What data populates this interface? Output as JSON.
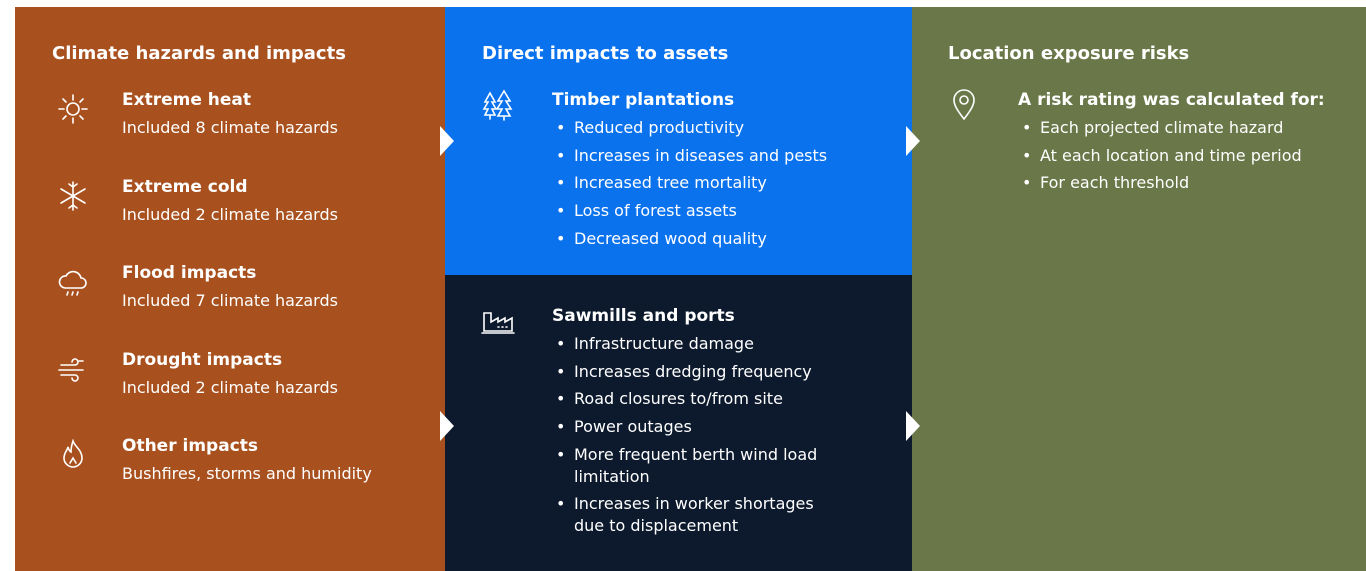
{
  "columns": [
    {
      "title": "Climate hazards and impacts",
      "items": [
        {
          "title": "Extreme heat",
          "text": "Included 8 climate hazards"
        },
        {
          "title": "Extreme cold",
          "text": "Included 2 climate hazards"
        },
        {
          "title": "Flood impacts",
          "text": "Included 7 climate hazards"
        },
        {
          "title": "Drought impacts",
          "text": "Included 2 climate hazards"
        },
        {
          "title": "Other impacts",
          "text": "Bushfires, storms and humidity"
        }
      ]
    },
    {
      "title": "Direct impacts to assets",
      "groups": [
        {
          "title": "Timber plantations",
          "bullets": [
            "Reduced productivity",
            "Increases in diseases and pests",
            "Increased tree mortality",
            "Loss of forest assets",
            "Decreased wood quality"
          ]
        },
        {
          "title": "Sawmills and ports",
          "bullets": [
            "Infrastructure damage",
            "Increases dredging frequency",
            "Road closures to/from site",
            "Power outages",
            "More frequent berth wind load limitation",
            "Increases in worker shortages due to displacement"
          ]
        }
      ]
    },
    {
      "title": "Location exposure risks",
      "groups": [
        {
          "title": "A risk rating was calculated for:",
          "bullets": [
            "Each projected climate hazard",
            "At each location and time period",
            "For each threshold"
          ]
        }
      ]
    }
  ]
}
